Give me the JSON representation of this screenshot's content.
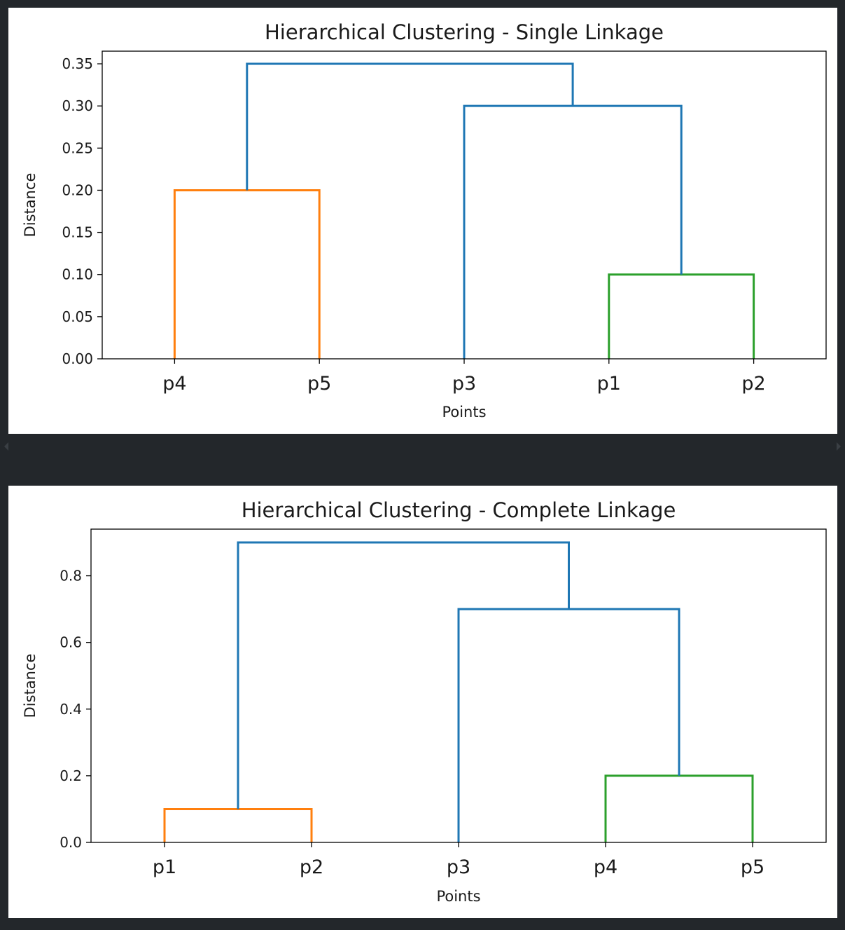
{
  "chart_data": [
    {
      "type": "dendrogram",
      "title": "Hierarchical Clustering - Single Linkage",
      "xlabel": "Points",
      "ylabel": "Distance",
      "ylim": [
        0,
        0.365
      ],
      "yticks": [
        "0.00",
        "0.05",
        "0.10",
        "0.15",
        "0.20",
        "0.25",
        "0.30",
        "0.35"
      ],
      "ytick_values": [
        0,
        0.05,
        0.1,
        0.15,
        0.2,
        0.25,
        0.3,
        0.35
      ],
      "leaves": [
        "p4",
        "p5",
        "p3",
        "p1",
        "p2"
      ],
      "links": [
        {
          "color": "#ff7f0e",
          "x": [
            1,
            1,
            2,
            2
          ],
          "y": [
            0,
            0.2,
            0.2,
            0
          ]
        },
        {
          "color": "#2ca02c",
          "x": [
            4,
            4,
            5,
            5
          ],
          "y": [
            0,
            0.1,
            0.1,
            0
          ]
        },
        {
          "color": "#1f77b4",
          "x": [
            3,
            3,
            4.5,
            4.5
          ],
          "y": [
            0,
            0.3,
            0.3,
            0.1
          ]
        },
        {
          "color": "#1f77b4",
          "x": [
            1.5,
            1.5,
            3.75,
            3.75
          ],
          "y": [
            0.2,
            0.35,
            0.35,
            0.3
          ]
        }
      ]
    },
    {
      "type": "dendrogram",
      "title": "Hierarchical Clustering - Complete Linkage",
      "xlabel": "Points",
      "ylabel": "Distance",
      "ylim": [
        0,
        0.94
      ],
      "yticks": [
        "0.0",
        "0.2",
        "0.4",
        "0.6",
        "0.8"
      ],
      "ytick_values": [
        0,
        0.2,
        0.4,
        0.6,
        0.8
      ],
      "leaves": [
        "p1",
        "p2",
        "p3",
        "p4",
        "p5"
      ],
      "links": [
        {
          "color": "#ff7f0e",
          "x": [
            1,
            1,
            2,
            2
          ],
          "y": [
            0,
            0.1,
            0.1,
            0
          ]
        },
        {
          "color": "#2ca02c",
          "x": [
            4,
            4,
            5,
            5
          ],
          "y": [
            0,
            0.2,
            0.2,
            0
          ]
        },
        {
          "color": "#1f77b4",
          "x": [
            3,
            3,
            4.5,
            4.5
          ],
          "y": [
            0,
            0.7,
            0.7,
            0.2
          ]
        },
        {
          "color": "#1f77b4",
          "x": [
            1.5,
            1.5,
            3.75,
            3.75
          ],
          "y": [
            0.1,
            0.9,
            0.9,
            0.7
          ]
        }
      ]
    }
  ]
}
